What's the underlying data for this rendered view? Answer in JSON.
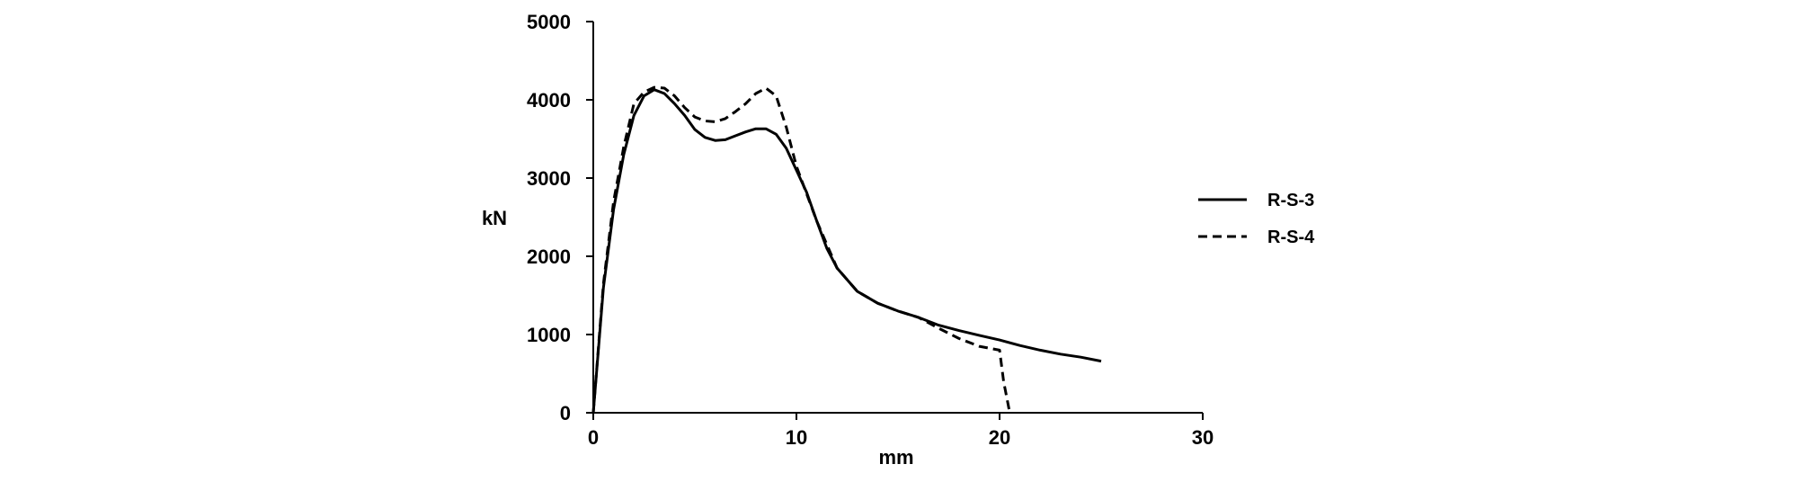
{
  "chart_data": {
    "type": "line",
    "title": "",
    "xlabel": "mm",
    "ylabel": "kN",
    "xlim": [
      0,
      30
    ],
    "ylim": [
      0,
      5000
    ],
    "xticks": [
      0,
      10,
      20,
      30
    ],
    "yticks": [
      0,
      1000,
      2000,
      3000,
      4000,
      5000
    ],
    "grid": false,
    "legend_position": "right",
    "series": [
      {
        "name": "R-S-3",
        "style": "solid",
        "color": "#000000",
        "x": [
          0,
          0.5,
          1,
          1.5,
          2,
          2.5,
          3,
          3.5,
          4,
          4.5,
          5,
          5.5,
          6,
          6.5,
          7,
          7.5,
          8,
          8.5,
          9,
          9.5,
          10,
          10.5,
          11,
          11.5,
          12,
          13,
          14,
          15,
          16,
          17,
          18,
          19,
          20,
          21,
          22,
          23,
          24,
          25
        ],
        "y": [
          0,
          1600,
          2600,
          3300,
          3800,
          4050,
          4130,
          4080,
          3950,
          3800,
          3620,
          3520,
          3480,
          3490,
          3540,
          3590,
          3630,
          3630,
          3560,
          3380,
          3100,
          2820,
          2450,
          2100,
          1850,
          1550,
          1400,
          1300,
          1220,
          1120,
          1050,
          990,
          930,
          860,
          800,
          750,
          710,
          660
        ]
      },
      {
        "name": "R-S-4",
        "style": "dashed",
        "color": "#000000",
        "x": [
          0,
          0.5,
          1,
          1.5,
          2,
          2.5,
          3,
          3.5,
          4,
          4.5,
          5,
          5.5,
          6,
          6.5,
          7,
          7.5,
          8,
          8.5,
          9,
          9.5,
          10,
          10.5,
          11,
          11.5,
          12,
          13,
          14,
          15,
          16,
          17,
          18,
          19,
          20,
          20.2,
          20.5
        ],
        "y": [
          0,
          1650,
          2700,
          3400,
          3950,
          4100,
          4160,
          4150,
          4050,
          3900,
          3780,
          3730,
          3720,
          3760,
          3850,
          3950,
          4080,
          4150,
          4050,
          3650,
          3150,
          2800,
          2450,
          2150,
          1850,
          1550,
          1400,
          1300,
          1220,
          1080,
          950,
          850,
          800,
          400,
          0
        ]
      }
    ]
  }
}
